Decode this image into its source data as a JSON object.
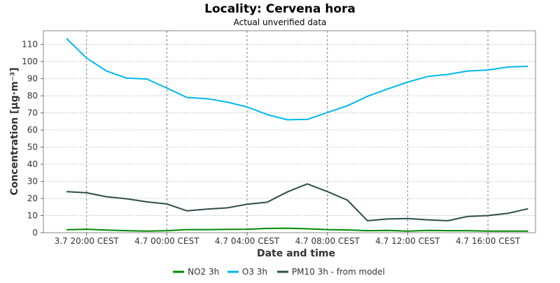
{
  "chart_data": {
    "type": "line",
    "title": "Locality: Cervena hora",
    "subtitle": "Actual unverified data",
    "xlabel": "Date and time",
    "ylabel": "Concentration [µg·m⁻³]",
    "ylim": [
      0,
      118
    ],
    "yticks": [
      0,
      10,
      20,
      30,
      40,
      50,
      60,
      70,
      80,
      90,
      100,
      110
    ],
    "x_tick_labels": [
      "3.7 20:00 CEST",
      "4.7 00:00 CEST",
      "4.7 04:00 CEST",
      "4.7 08:00 CEST",
      "4.7 12:00 CEST",
      "4.7 16:00 CEST"
    ],
    "x": [
      "3.7 19:00",
      "3.7 20:00",
      "3.7 21:00",
      "3.7 22:00",
      "3.7 23:00",
      "4.7 00:00",
      "4.7 01:00",
      "4.7 02:00",
      "4.7 03:00",
      "4.7 04:00",
      "4.7 05:00",
      "4.7 06:00",
      "4.7 07:00",
      "4.7 08:00",
      "4.7 09:00",
      "4.7 10:00",
      "4.7 11:00",
      "4.7 12:00",
      "4.7 13:00",
      "4.7 14:00",
      "4.7 15:00",
      "4.7 16:00",
      "4.7 17:00",
      "4.7 18:00"
    ],
    "grid": true,
    "legend_position": "bottom",
    "series": [
      {
        "name": "NO2 3h",
        "color": "#008800",
        "values": [
          1.7,
          2.0,
          1.5,
          1.2,
          0.9,
          1.2,
          1.8,
          1.8,
          1.9,
          2.0,
          2.5,
          2.6,
          2.3,
          1.8,
          1.6,
          1.2,
          1.3,
          0.9,
          1.3,
          1.2,
          1.2,
          0.9,
          0.9,
          0.9
        ]
      },
      {
        "name": "O3 3h",
        "color": "#00b8f0",
        "values": [
          113.5,
          102.0,
          94.5,
          90.3,
          89.8,
          84.5,
          79.0,
          78.3,
          76.3,
          73.5,
          69.0,
          66.0,
          66.2,
          70.2,
          74.2,
          79.7,
          84.0,
          88.0,
          91.3,
          92.5,
          94.5,
          95.0,
          96.8,
          97.2
        ]
      },
      {
        "name": "PM10 3h - from model",
        "color": "#2d4d4d",
        "values": [
          24.0,
          23.3,
          21.0,
          19.8,
          18.0,
          16.8,
          12.8,
          13.8,
          14.5,
          16.6,
          17.8,
          23.8,
          28.5,
          24.0,
          19.0,
          7.0,
          8.0,
          8.3,
          7.5,
          7.0,
          9.5,
          10.0,
          11.3,
          14.0
        ]
      }
    ]
  }
}
